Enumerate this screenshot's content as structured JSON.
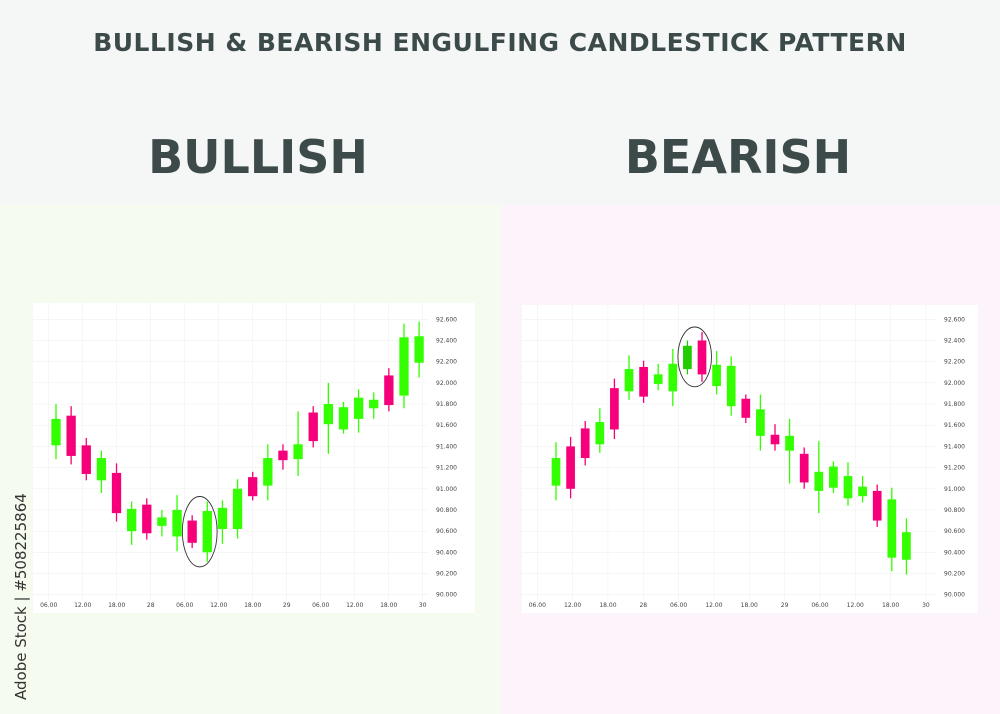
{
  "title": "BULLISH & BEARISH ENGULFING CANDLESTICK PATTERN",
  "watermark_side": "Adobe Stock | #508225864",
  "colors": {
    "up": "#33ff00",
    "down": "#f5007a",
    "up_highlight": "#22cc00",
    "text": "#3d4a4a",
    "ellipse": "#333333"
  },
  "chart_data": [
    {
      "type": "candlestick",
      "title": "BULLISH",
      "ylim": [
        90.0,
        92.6
      ],
      "yticks": [
        "92.600",
        "92.400",
        "92.200",
        "92.000",
        "91.800",
        "91.600",
        "91.400",
        "91.200",
        "91.000",
        "90.800",
        "90.600",
        "90.400",
        "90.200",
        "90.000"
      ],
      "xticks": [
        "06.00",
        "12.00",
        "18.00",
        "28",
        "06.00",
        "12.00",
        "18.00",
        "29",
        "06.00",
        "12.00",
        "18.00",
        "30"
      ],
      "grid": true,
      "highlight": [
        9,
        10
      ],
      "candles": [
        {
          "o": 91.41,
          "h": 91.8,
          "l": 91.28,
          "c": 91.66
        },
        {
          "o": 91.69,
          "h": 91.78,
          "l": 91.23,
          "c": 91.31
        },
        {
          "o": 91.41,
          "h": 91.48,
          "l": 91.08,
          "c": 91.14
        },
        {
          "o": 91.08,
          "h": 91.36,
          "l": 90.96,
          "c": 91.29
        },
        {
          "o": 91.15,
          "h": 91.24,
          "l": 90.69,
          "c": 90.77
        },
        {
          "o": 90.6,
          "h": 90.88,
          "l": 90.47,
          "c": 90.81
        },
        {
          "o": 90.85,
          "h": 90.91,
          "l": 90.52,
          "c": 90.58
        },
        {
          "o": 90.65,
          "h": 90.8,
          "l": 90.55,
          "c": 90.73
        },
        {
          "o": 90.55,
          "h": 90.94,
          "l": 90.41,
          "c": 90.8
        },
        {
          "o": 90.7,
          "h": 90.75,
          "l": 90.44,
          "c": 90.49
        },
        {
          "o": 90.4,
          "h": 90.88,
          "l": 90.31,
          "c": 90.79
        },
        {
          "o": 90.62,
          "h": 90.89,
          "l": 90.48,
          "c": 90.82
        },
        {
          "o": 90.62,
          "h": 91.09,
          "l": 90.53,
          "c": 91.0
        },
        {
          "o": 91.11,
          "h": 91.16,
          "l": 90.89,
          "c": 90.93
        },
        {
          "o": 91.03,
          "h": 91.42,
          "l": 90.89,
          "c": 91.29
        },
        {
          "o": 91.36,
          "h": 91.42,
          "l": 91.18,
          "c": 91.27
        },
        {
          "o": 91.28,
          "h": 91.73,
          "l": 91.12,
          "c": 91.42
        },
        {
          "o": 91.72,
          "h": 91.78,
          "l": 91.39,
          "c": 91.45
        },
        {
          "o": 91.61,
          "h": 92.0,
          "l": 91.33,
          "c": 91.8
        },
        {
          "o": 91.56,
          "h": 91.82,
          "l": 91.52,
          "c": 91.77
        },
        {
          "o": 91.66,
          "h": 91.94,
          "l": 91.53,
          "c": 91.86
        },
        {
          "o": 91.76,
          "h": 91.91,
          "l": 91.66,
          "c": 91.84
        },
        {
          "o": 92.07,
          "h": 92.14,
          "l": 91.73,
          "c": 91.79
        },
        {
          "o": 91.88,
          "h": 92.56,
          "l": 91.76,
          "c": 92.43
        },
        {
          "o": 92.19,
          "h": 92.58,
          "l": 92.05,
          "c": 92.44
        }
      ]
    },
    {
      "type": "candlestick",
      "title": "BEARISH",
      "ylim": [
        90.0,
        92.6
      ],
      "yticks": [
        "92.600",
        "92.400",
        "92.200",
        "92.000",
        "91.800",
        "91.600",
        "91.400",
        "91.200",
        "91.000",
        "90.800",
        "90.600",
        "90.400",
        "90.200",
        "90.000"
      ],
      "xticks": [
        "06.00",
        "12.00",
        "18.00",
        "28",
        "06.00",
        "12.00",
        "18.00",
        "29",
        "06.00",
        "12.00",
        "18.00",
        "30"
      ],
      "grid": true,
      "highlight": [
        9,
        10
      ],
      "candles": [
        {
          "o": 91.03,
          "h": 91.44,
          "l": 90.89,
          "c": 91.29
        },
        {
          "o": 91.4,
          "h": 91.49,
          "l": 90.91,
          "c": 91.0
        },
        {
          "o": 91.57,
          "h": 91.64,
          "l": 91.22,
          "c": 91.29
        },
        {
          "o": 91.42,
          "h": 91.76,
          "l": 91.34,
          "c": 91.63
        },
        {
          "o": 91.95,
          "h": 92.04,
          "l": 91.47,
          "c": 91.56
        },
        {
          "o": 91.92,
          "h": 92.26,
          "l": 91.84,
          "c": 92.13
        },
        {
          "o": 92.15,
          "h": 92.21,
          "l": 91.81,
          "c": 91.87
        },
        {
          "o": 91.99,
          "h": 92.18,
          "l": 91.93,
          "c": 92.08
        },
        {
          "o": 91.92,
          "h": 92.32,
          "l": 91.78,
          "c": 92.18
        },
        {
          "o": 92.13,
          "h": 92.4,
          "l": 92.08,
          "c": 92.35
        },
        {
          "o": 92.4,
          "h": 92.48,
          "l": 92.01,
          "c": 92.08
        },
        {
          "o": 91.97,
          "h": 92.3,
          "l": 91.89,
          "c": 92.17
        },
        {
          "o": 91.78,
          "h": 92.25,
          "l": 91.69,
          "c": 92.16
        },
        {
          "o": 91.85,
          "h": 91.89,
          "l": 91.62,
          "c": 91.67
        },
        {
          "o": 91.5,
          "h": 91.89,
          "l": 91.36,
          "c": 91.75
        },
        {
          "o": 91.51,
          "h": 91.61,
          "l": 91.36,
          "c": 91.42
        },
        {
          "o": 91.36,
          "h": 91.66,
          "l": 91.05,
          "c": 91.5
        },
        {
          "o": 91.33,
          "h": 91.39,
          "l": 91.0,
          "c": 91.06
        },
        {
          "o": 90.98,
          "h": 91.45,
          "l": 90.77,
          "c": 91.16
        },
        {
          "o": 91.01,
          "h": 91.26,
          "l": 90.96,
          "c": 91.21
        },
        {
          "o": 90.91,
          "h": 91.25,
          "l": 90.84,
          "c": 91.12
        },
        {
          "o": 90.93,
          "h": 91.12,
          "l": 90.87,
          "c": 91.02
        },
        {
          "o": 90.98,
          "h": 91.04,
          "l": 90.64,
          "c": 90.7
        },
        {
          "o": 90.35,
          "h": 91.01,
          "l": 90.22,
          "c": 90.9
        },
        {
          "o": 90.33,
          "h": 90.72,
          "l": 90.19,
          "c": 90.59
        }
      ]
    }
  ]
}
